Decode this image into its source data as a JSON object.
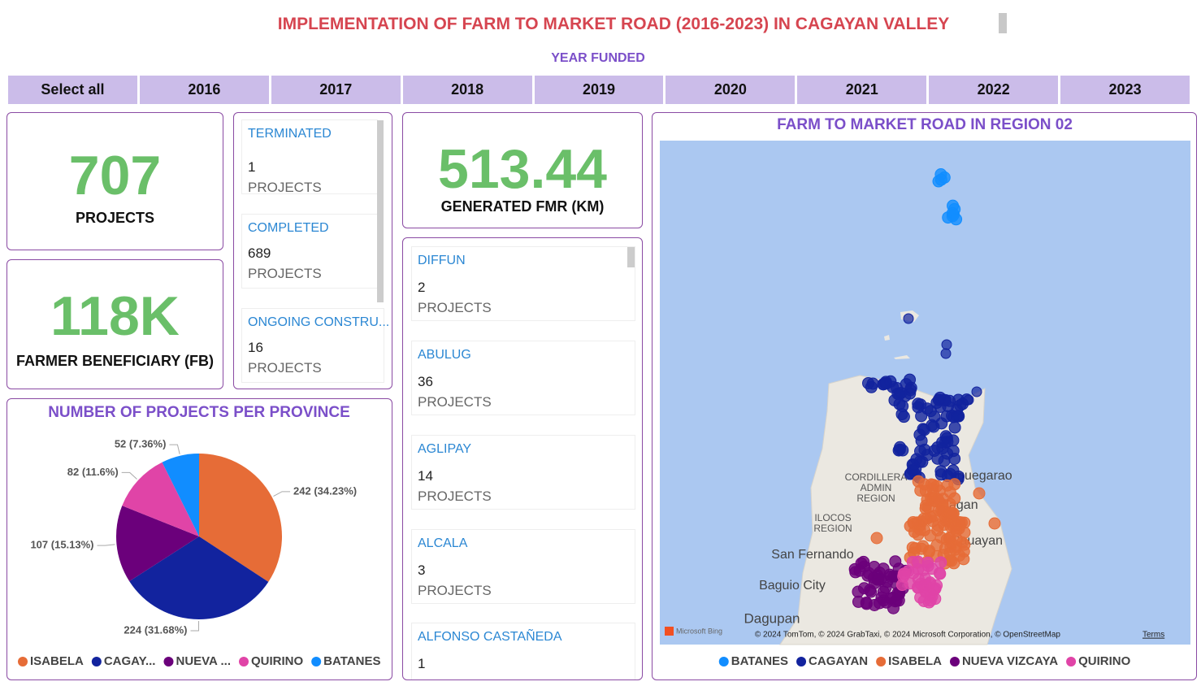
{
  "header": {
    "title": "IMPLEMENTATION OF FARM TO MARKET ROAD (2016-2023) IN CAGAYAN VALLEY",
    "slicer_label": "YEAR FUNDED"
  },
  "slicer": [
    "Select all",
    "2016",
    "2017",
    "2018",
    "2019",
    "2020",
    "2021",
    "2022",
    "2023"
  ],
  "kpis": {
    "projects": {
      "value": 707,
      "label": "PROJECTS"
    },
    "beneficiaries": {
      "value": "118K",
      "label": "FARMER BENEFICIARY (FB)"
    },
    "fmr": {
      "value": 513.44,
      "label": "GENERATED FMR (KM)"
    }
  },
  "status_cards": [
    {
      "status": "TERMINATED",
      "count": 1,
      "unit": "PROJECTS"
    },
    {
      "status": "COMPLETED",
      "count": 689,
      "unit": "PROJECTS"
    },
    {
      "status": "ONGOING CONSTRU...",
      "count": 16,
      "unit": "PROJECTS"
    }
  ],
  "municipality_cards": [
    {
      "name": "DIFFUN",
      "count": 2,
      "unit": "PROJECTS"
    },
    {
      "name": "ABULUG",
      "count": 36,
      "unit": "PROJECTS"
    },
    {
      "name": "AGLIPAY",
      "count": 14,
      "unit": "PROJECTS"
    },
    {
      "name": "ALCALA",
      "count": 3,
      "unit": "PROJECTS"
    },
    {
      "name": "ALFONSO CASTAÑEDA",
      "count": 1
    }
  ],
  "pie_chart": {
    "type": "pie",
    "title": "NUMBER OF PROJECTS PER PROVINCE",
    "categories": [
      "ISABELA",
      "CAGAY...",
      "NUEVA ...",
      "QUIRINO",
      "BATANES"
    ],
    "values": [
      242,
      224,
      107,
      82,
      52
    ],
    "value_labels": [
      "242 (34.23%)",
      "224 (31.68%)",
      "107 (15.13%)",
      "82 (11.6%)",
      "52 (7.36%)"
    ],
    "colors": [
      "#e66c37",
      "#12239e",
      "#6b007b",
      "#e044a7",
      "#118dff"
    ]
  },
  "map": {
    "title": "FARM TO MARKET ROAD IN REGION 02",
    "places": [
      "CORDILLERA",
      "ADMIN",
      "REGION",
      "ILOCOS",
      "REGION",
      "Tuguegarao",
      "Ilagan",
      "Cauayan",
      "San Fernando",
      "Baguio City",
      "Dagupan"
    ],
    "attribution": "© 2024 TomTom, © 2024 GrabTaxi, © 2024 Microsoft Corporation, © OpenStreetMap",
    "terms": "Terms",
    "provider": "Microsoft Bing",
    "legend": [
      {
        "name": "BATANES",
        "color": "#118dff"
      },
      {
        "name": "CAGAYAN",
        "color": "#12239e"
      },
      {
        "name": "ISABELA",
        "color": "#e66c37"
      },
      {
        "name": "NUEVA VIZCAYA",
        "color": "#6b007b"
      },
      {
        "name": "QUIRINO",
        "color": "#e044a7"
      }
    ]
  }
}
